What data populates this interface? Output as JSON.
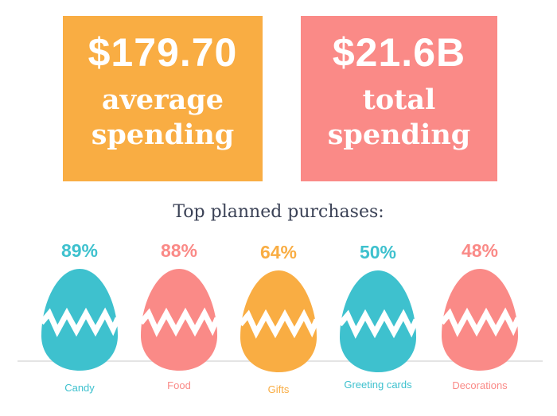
{
  "stats": {
    "average": {
      "value": "$179.70",
      "label_line1": "average",
      "label_line2": "spending",
      "color": "#f9ad43"
    },
    "total": {
      "value": "$21.6B",
      "label_line1": "total",
      "label_line2": "spending",
      "color": "#fa8a87"
    }
  },
  "chart_data": {
    "type": "bar",
    "title": "Top planned purchases:",
    "categories": [
      "Candy",
      "Food",
      "Gifts",
      "Greeting cards",
      "Decorations"
    ],
    "values": [
      89,
      88,
      64,
      50,
      48
    ],
    "value_labels": [
      "89%",
      "88%",
      "64%",
      "50%",
      "48%"
    ],
    "colors": [
      "#3ec1ce",
      "#fa8a87",
      "#f9ad43",
      "#3ec1ce",
      "#fa8a87"
    ],
    "unit": "%"
  },
  "egg_icon": "easter-egg-icon"
}
